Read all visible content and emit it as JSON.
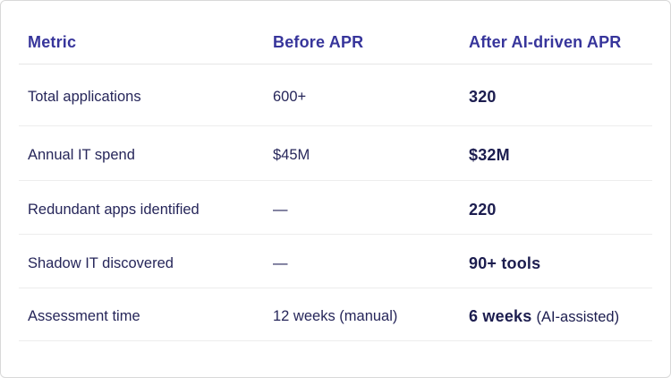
{
  "table": {
    "header": [
      "Metric",
      "Before APR",
      "After AI-driven APR"
    ],
    "rows": [
      {
        "metric": "Total applications",
        "before": "600+",
        "after": "320",
        "after_note": ""
      },
      {
        "metric": "Annual IT spend",
        "before": "$45M",
        "after": "$32M",
        "after_note": ""
      },
      {
        "metric": "Redundant apps identified",
        "before": "—",
        "after": "220",
        "after_note": ""
      },
      {
        "metric": "Shadow IT discovered",
        "before": "—",
        "after": "90+ tools",
        "after_note": ""
      },
      {
        "metric": "Assessment time",
        "before": "12 weeks (manual)",
        "after": "6 weeks",
        "after_note": "(AI-assisted)"
      }
    ]
  },
  "chart_data": {
    "type": "table",
    "columns": [
      "Metric",
      "Before APR",
      "After AI-driven APR"
    ],
    "rows": [
      [
        "Total applications",
        "600+",
        "320"
      ],
      [
        "Annual IT spend",
        "$45M",
        "$32M"
      ],
      [
        "Redundant apps identified",
        "—",
        "220"
      ],
      [
        "Shadow IT discovered",
        "—",
        "90+ tools"
      ],
      [
        "Assessment time",
        "12 weeks (manual)",
        "6 weeks (AI-assisted)"
      ]
    ]
  },
  "colors": {
    "header_text": "#37359b",
    "body_text": "#26265a",
    "value_text": "#1c1d4f",
    "divider": "#ededed",
    "card_border": "#d9d9d9",
    "card_background": "#ffffff"
  }
}
